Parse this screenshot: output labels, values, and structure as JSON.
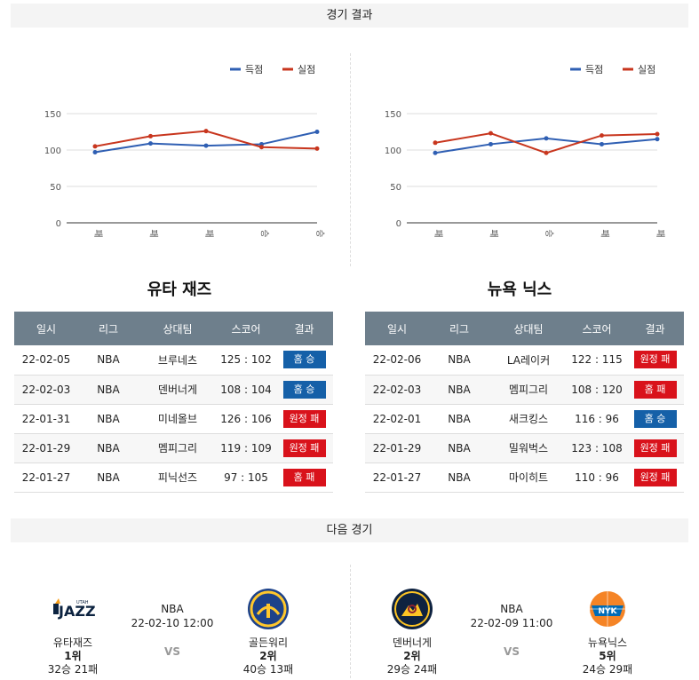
{
  "sections": {
    "results_title": "경기 결과",
    "next_title": "다음 경기"
  },
  "colors": {
    "scored": "#2f5fb3",
    "conceded": "#c8361e",
    "win": "#1560a8",
    "loss": "#d9121b",
    "header": "#6e7f8c"
  },
  "chart_data": [
    {
      "type": "line",
      "categories": [
        "패",
        "패",
        "패",
        "승",
        "승"
      ],
      "series": [
        {
          "name": "득점",
          "values": [
            97,
            109,
            106,
            108,
            125
          ]
        },
        {
          "name": "실점",
          "values": [
            105,
            119,
            126,
            104,
            102
          ]
        }
      ],
      "ylim": [
        0,
        150
      ],
      "yticks": [
        "0",
        "50",
        "100",
        "150"
      ],
      "legend": "top-right",
      "grid": true
    },
    {
      "type": "line",
      "categories": [
        "패",
        "패",
        "승",
        "패",
        "패"
      ],
      "series": [
        {
          "name": "득점",
          "values": [
            96,
            108,
            116,
            108,
            115
          ]
        },
        {
          "name": "실점",
          "values": [
            110,
            123,
            96,
            120,
            122
          ]
        }
      ],
      "ylim": [
        0,
        150
      ],
      "yticks": [
        "0",
        "50",
        "100",
        "150"
      ],
      "legend": "top-right",
      "grid": true
    }
  ],
  "tables": {
    "headers": [
      "일시",
      "리그",
      "상대팀",
      "스코어",
      "결과"
    ],
    "left": {
      "team": "유타 재즈",
      "rows": [
        {
          "date": "22-02-05",
          "league": "NBA",
          "opponent": "브루네츠",
          "score": "125 : 102",
          "result": "홈 승",
          "kind": "win"
        },
        {
          "date": "22-02-03",
          "league": "NBA",
          "opponent": "덴버너게",
          "score": "108 : 104",
          "result": "홈 승",
          "kind": "win"
        },
        {
          "date": "22-01-31",
          "league": "NBA",
          "opponent": "미네올브",
          "score": "126 : 106",
          "result": "원정 패",
          "kind": "loss"
        },
        {
          "date": "22-01-29",
          "league": "NBA",
          "opponent": "멤피그리",
          "score": "119 : 109",
          "result": "원정 패",
          "kind": "loss"
        },
        {
          "date": "22-01-27",
          "league": "NBA",
          "opponent": "피닉선즈",
          "score": "97 : 105",
          "result": "홈 패",
          "kind": "loss"
        }
      ]
    },
    "right": {
      "team": "뉴욕 닉스",
      "rows": [
        {
          "date": "22-02-06",
          "league": "NBA",
          "opponent": "LA레이커",
          "score": "122 : 115",
          "result": "원정 패",
          "kind": "loss"
        },
        {
          "date": "22-02-03",
          "league": "NBA",
          "opponent": "멤피그리",
          "score": "108 : 120",
          "result": "홈 패",
          "kind": "loss"
        },
        {
          "date": "22-02-01",
          "league": "NBA",
          "opponent": "새크킹스",
          "score": "116 : 96",
          "result": "홈 승",
          "kind": "win"
        },
        {
          "date": "22-01-29",
          "league": "NBA",
          "opponent": "밀워벅스",
          "score": "123 : 108",
          "result": "원정 패",
          "kind": "loss"
        },
        {
          "date": "22-01-27",
          "league": "NBA",
          "opponent": "마이히트",
          "score": "110 : 96",
          "result": "원정 패",
          "kind": "loss"
        }
      ]
    }
  },
  "next_games": [
    {
      "league": "NBA",
      "datetime": "22-02-10 12:00",
      "vs": "VS",
      "home": {
        "name": "유타재즈",
        "rank": "1위",
        "record": "32승 21패",
        "logo_icon": "utah-jazz-logo"
      },
      "away": {
        "name": "골든워리",
        "rank": "2위",
        "record": "40승 13패",
        "logo_icon": "golden-state-warriors-logo"
      }
    },
    {
      "league": "NBA",
      "datetime": "22-02-09 11:00",
      "vs": "VS",
      "home": {
        "name": "덴버너게",
        "rank": "2위",
        "record": "29승 24패",
        "logo_icon": "denver-nuggets-logo"
      },
      "away": {
        "name": "뉴욕닉스",
        "rank": "5위",
        "record": "24승 29패",
        "logo_icon": "new-york-knicks-logo"
      }
    }
  ]
}
